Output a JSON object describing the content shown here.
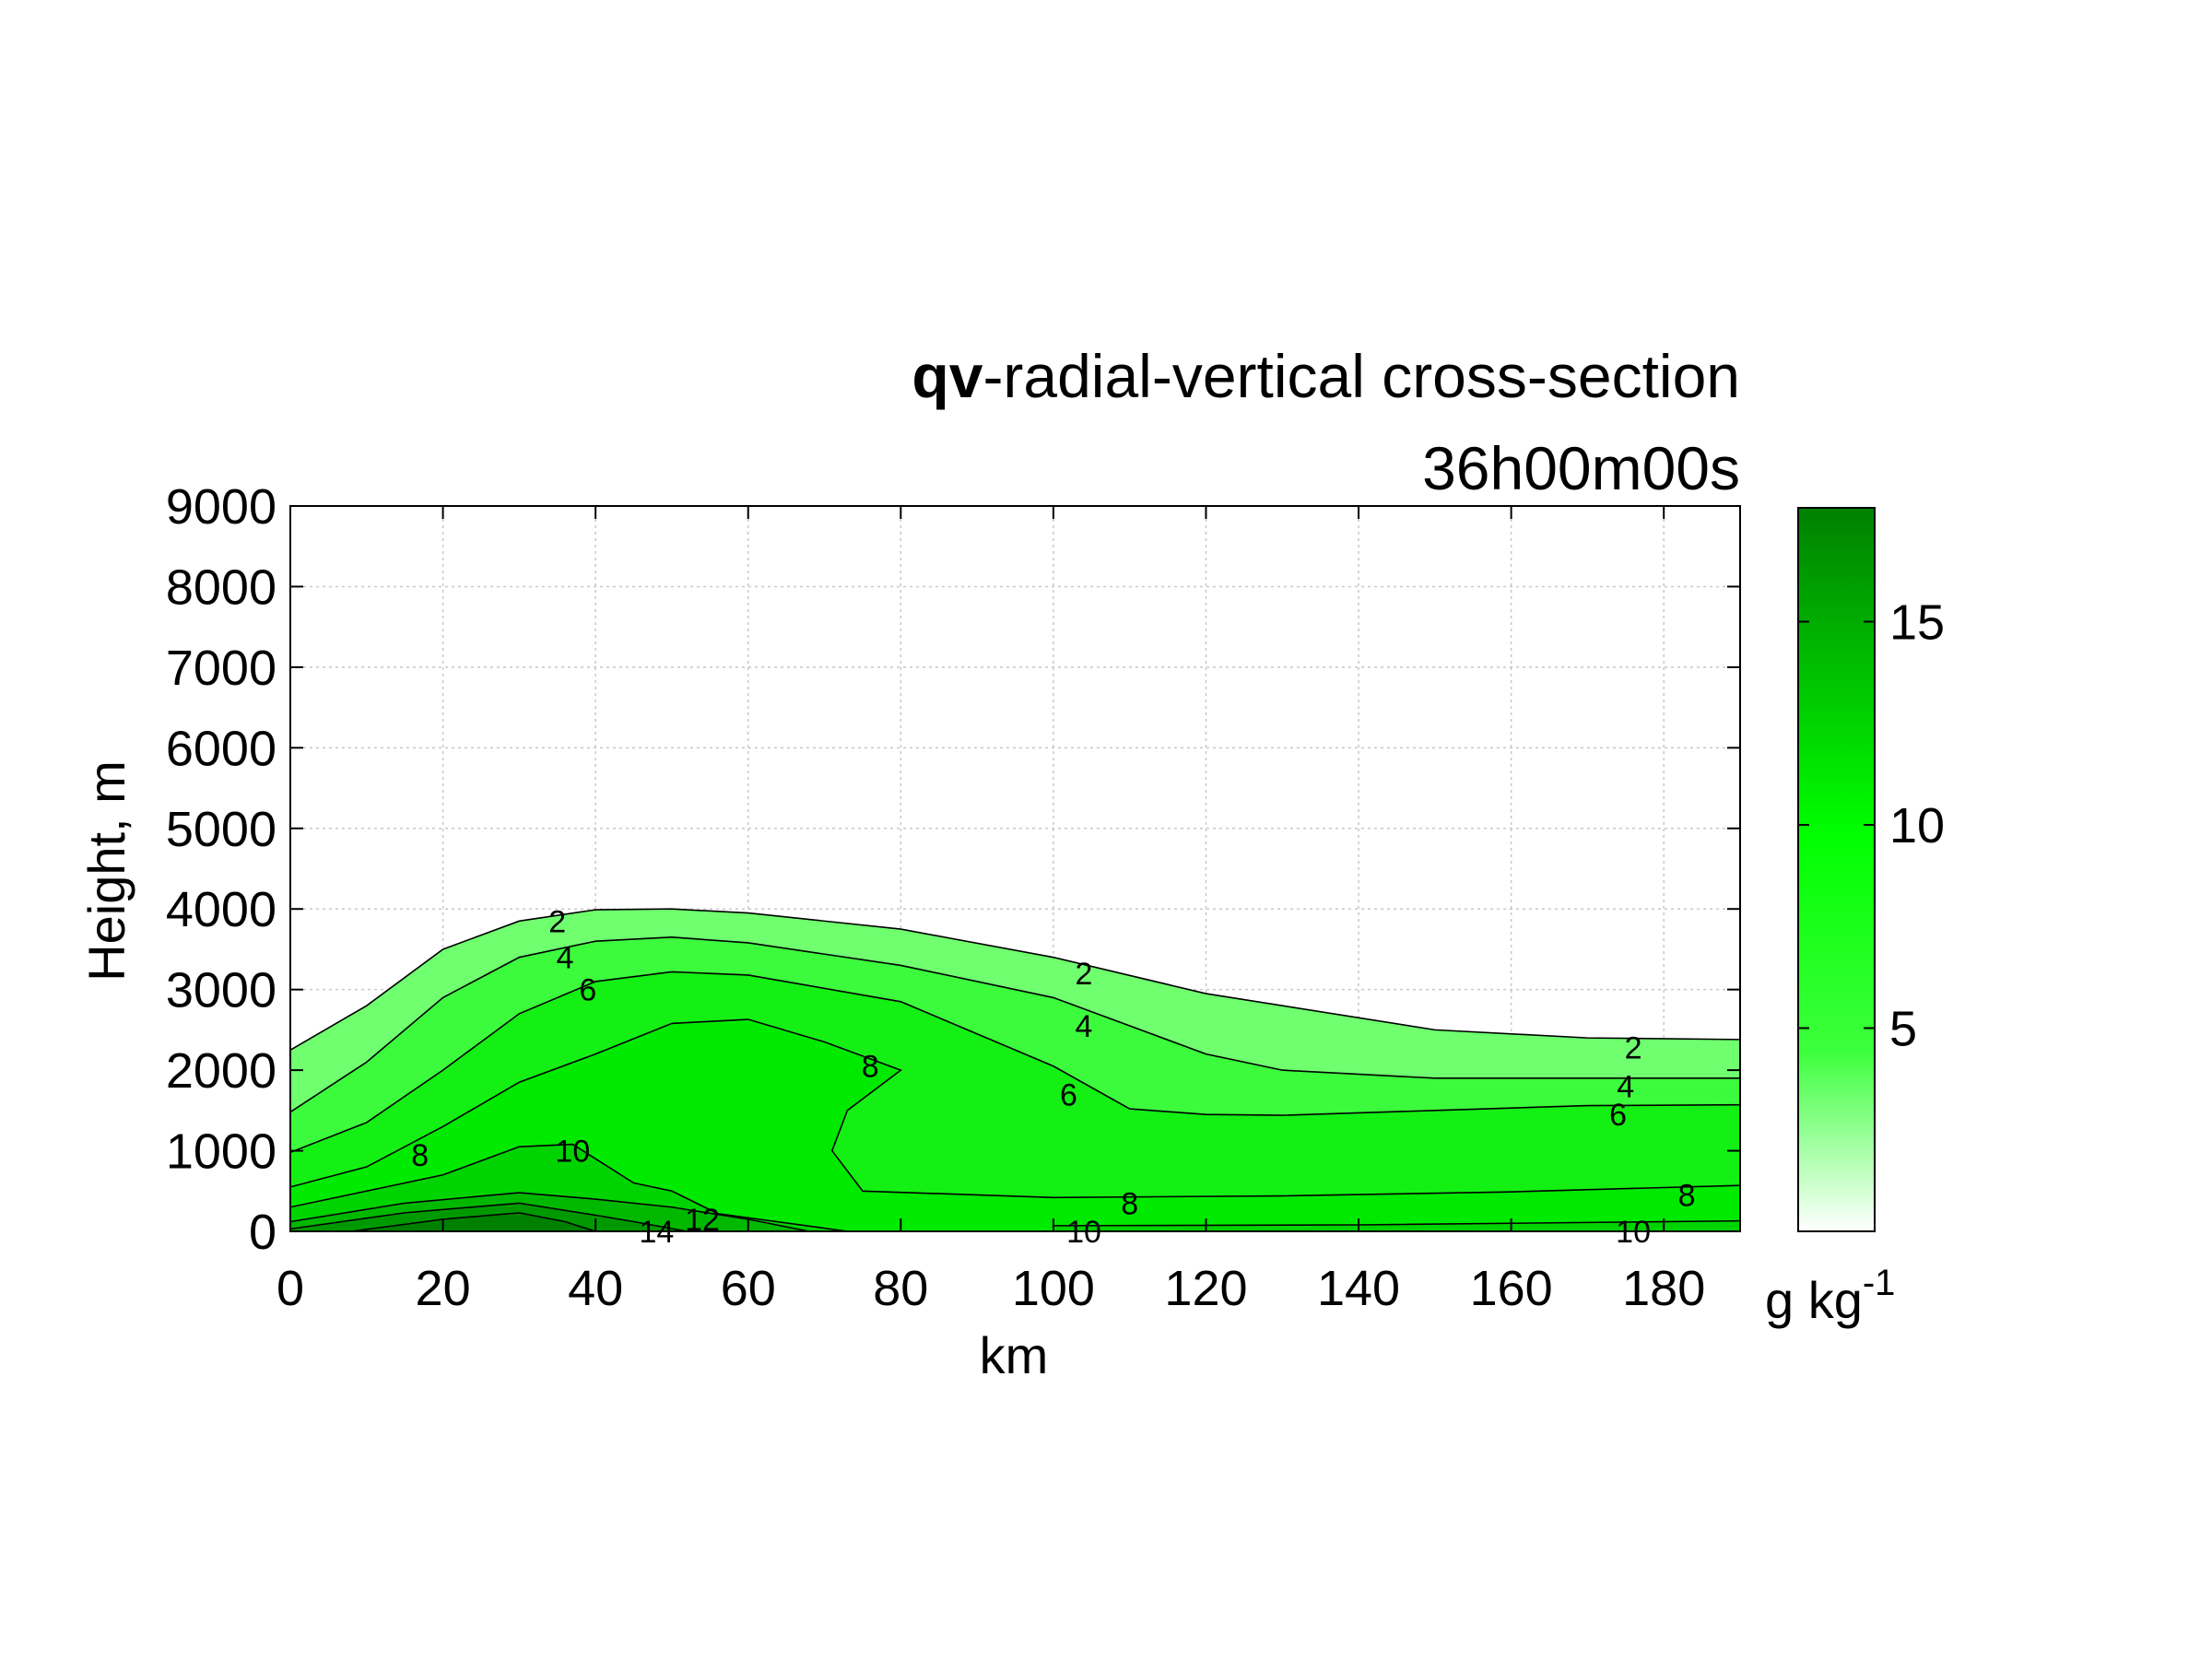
{
  "chart_data": {
    "type": "contourf",
    "title_bold": "qv",
    "title_rest": "-radial-vertical cross-section",
    "subtitle": "36h00m00s",
    "xlabel": "km",
    "ylabel": "Height, m",
    "xlim": [
      0,
      190
    ],
    "ylim": [
      0,
      9000
    ],
    "xticks": [
      "0",
      "20",
      "40",
      "60",
      "80",
      "100",
      "120",
      "140",
      "160",
      "180"
    ],
    "yticks": [
      "0",
      "1000",
      "2000",
      "3000",
      "4000",
      "5000",
      "6000",
      "7000",
      "8000",
      "9000"
    ],
    "grid": true,
    "colorbar": {
      "label_base": "g kg",
      "label_exp": "-1",
      "range": [
        0,
        17.8
      ],
      "ticks": [
        "5",
        "10",
        "15"
      ],
      "tick_values": [
        5,
        10,
        15
      ],
      "color_low": "#ffffff",
      "color_mid": "#00ff00",
      "color_high": "#008000"
    },
    "levels": [
      {
        "level": 2,
        "color": "#6fff6f",
        "contour": [
          [
            0,
            2250
          ],
          [
            10,
            2800
          ],
          [
            20,
            3500
          ],
          [
            30,
            3850
          ],
          [
            40,
            3990
          ],
          [
            50,
            4000
          ],
          [
            60,
            3950
          ],
          [
            80,
            3750
          ],
          [
            100,
            3400
          ],
          [
            120,
            2950
          ],
          [
            150,
            2500
          ],
          [
            170,
            2400
          ],
          [
            190,
            2380
          ]
        ]
      },
      {
        "level": 4,
        "color": "#3cfa3c",
        "contour": [
          [
            0,
            1480
          ],
          [
            10,
            2100
          ],
          [
            20,
            2900
          ],
          [
            30,
            3400
          ],
          [
            40,
            3600
          ],
          [
            50,
            3650
          ],
          [
            60,
            3580
          ],
          [
            80,
            3300
          ],
          [
            100,
            2900
          ],
          [
            120,
            2200
          ],
          [
            130,
            2000
          ],
          [
            150,
            1900
          ],
          [
            190,
            1900
          ]
        ]
      },
      {
        "level": 6,
        "color": "#14f014",
        "contour": [
          [
            0,
            980
          ],
          [
            10,
            1350
          ],
          [
            20,
            2000
          ],
          [
            30,
            2700
          ],
          [
            40,
            3100
          ],
          [
            50,
            3220
          ],
          [
            60,
            3180
          ],
          [
            80,
            2850
          ],
          [
            100,
            2050
          ],
          [
            110,
            1520
          ],
          [
            120,
            1450
          ],
          [
            130,
            1440
          ],
          [
            150,
            1500
          ],
          [
            170,
            1560
          ],
          [
            190,
            1570
          ]
        ]
      },
      {
        "level": 8,
        "color": "#00ea00",
        "contour": [
          [
            0,
            550
          ],
          [
            10,
            800
          ],
          [
            20,
            1300
          ],
          [
            30,
            1850
          ],
          [
            40,
            2200
          ],
          [
            50,
            2580
          ],
          [
            60,
            2630
          ],
          [
            70,
            2350
          ],
          [
            80,
            2000
          ],
          [
            73,
            1500
          ],
          [
            71,
            1000
          ],
          [
            75,
            500
          ],
          [
            100,
            420
          ],
          [
            130,
            440
          ],
          [
            160,
            490
          ],
          [
            190,
            570
          ]
        ]
      },
      {
        "level": 10,
        "color": "#00d400",
        "contour": [
          [
            0,
            300
          ],
          [
            20,
            700
          ],
          [
            30,
            1050
          ],
          [
            37,
            1080
          ],
          [
            45,
            600
          ],
          [
            50,
            500
          ],
          [
            56,
            220
          ],
          [
            73,
            0
          ],
          [
            100,
            0
          ],
          [
            100,
            70
          ],
          [
            140,
            80
          ],
          [
            170,
            110
          ],
          [
            190,
            130
          ]
        ]
      },
      {
        "level": 12,
        "color": "#00b800",
        "contour": [
          [
            0,
            120
          ],
          [
            15,
            350
          ],
          [
            30,
            480
          ],
          [
            40,
            400
          ],
          [
            50,
            300
          ],
          [
            60,
            150
          ],
          [
            68,
            0
          ]
        ]
      },
      {
        "level": 14,
        "color": "#009a00",
        "contour": [
          [
            0,
            30
          ],
          [
            15,
            230
          ],
          [
            30,
            350
          ],
          [
            40,
            200
          ],
          [
            45,
            120
          ],
          [
            52,
            0
          ]
        ]
      },
      {
        "level": 16,
        "color": "#008000",
        "contour": [
          [
            8,
            0
          ],
          [
            20,
            150
          ],
          [
            30,
            230
          ],
          [
            36,
            120
          ],
          [
            40,
            0
          ]
        ]
      }
    ],
    "contour_labels": [
      {
        "text": "2",
        "x": 35,
        "y": 3850
      },
      {
        "text": "4",
        "x": 36,
        "y": 3400
      },
      {
        "text": "6",
        "x": 39,
        "y": 3000
      },
      {
        "text": "8",
        "x": 17,
        "y": 950
      },
      {
        "text": "10",
        "x": 37,
        "y": 1000
      },
      {
        "text": "14",
        "x": 48,
        "y": 0
      },
      {
        "text": "12",
        "x": 54,
        "y": 150
      },
      {
        "text": "8",
        "x": 76,
        "y": 2050
      },
      {
        "text": "2",
        "x": 104,
        "y": 3200
      },
      {
        "text": "4",
        "x": 104,
        "y": 2550
      },
      {
        "text": "6",
        "x": 102,
        "y": 1700
      },
      {
        "text": "8",
        "x": 110,
        "y": 350
      },
      {
        "text": "10",
        "x": 104,
        "y": 0
      },
      {
        "text": "2",
        "x": 176,
        "y": 2280
      },
      {
        "text": "4",
        "x": 175,
        "y": 1800
      },
      {
        "text": "6",
        "x": 174,
        "y": 1450
      },
      {
        "text": "8",
        "x": 183,
        "y": 450
      },
      {
        "text": "10",
        "x": 176,
        "y": 0
      }
    ]
  }
}
